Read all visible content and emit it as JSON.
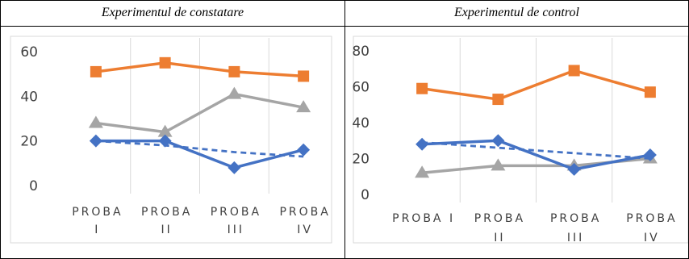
{
  "chart_data": [
    {
      "type": "line",
      "title": "Experimentul de constatare",
      "categories": [
        "PROBA I",
        "PROBA II",
        "PROBA III",
        "PROBA IV"
      ],
      "yticks": [
        0,
        20,
        40,
        60
      ],
      "ylim": [
        0,
        65
      ],
      "grid": "vertical",
      "legend": "none",
      "series": [
        {
          "values": [
            51,
            55,
            51,
            49
          ],
          "color": "#ED7D31",
          "marker": "square",
          "style": "solid"
        },
        {
          "values": [
            28,
            24,
            41,
            35
          ],
          "color": "#A5A5A5",
          "marker": "triangle",
          "style": "solid"
        },
        {
          "values": [
            20,
            20,
            8,
            16
          ],
          "color": "#4472C4",
          "marker": "diamond",
          "style": "solid"
        },
        {
          "values": [
            20,
            18,
            15,
            13
          ],
          "color": "#4472C4",
          "marker": "none",
          "style": "dashed"
        }
      ]
    },
    {
      "type": "line",
      "title": "Experimentul de control",
      "categories": [
        "PROBA I",
        "PROBA II",
        "PROBA III",
        "PROBA IV"
      ],
      "yticks": [
        0,
        20,
        40,
        60,
        80
      ],
      "ylim": [
        0,
        85
      ],
      "grid": "vertical",
      "legend": "none",
      "series": [
        {
          "values": [
            59,
            53,
            69,
            57
          ],
          "color": "#ED7D31",
          "marker": "square",
          "style": "solid"
        },
        {
          "values": [
            12,
            16,
            16,
            20
          ],
          "color": "#A5A5A5",
          "marker": "triangle",
          "style": "solid"
        },
        {
          "values": [
            28,
            30,
            14,
            22
          ],
          "color": "#4472C4",
          "marker": "diamond",
          "style": "solid"
        },
        {
          "values": [
            29,
            26,
            23,
            20
          ],
          "color": "#4472C4",
          "marker": "none",
          "style": "dashed"
        }
      ]
    }
  ]
}
